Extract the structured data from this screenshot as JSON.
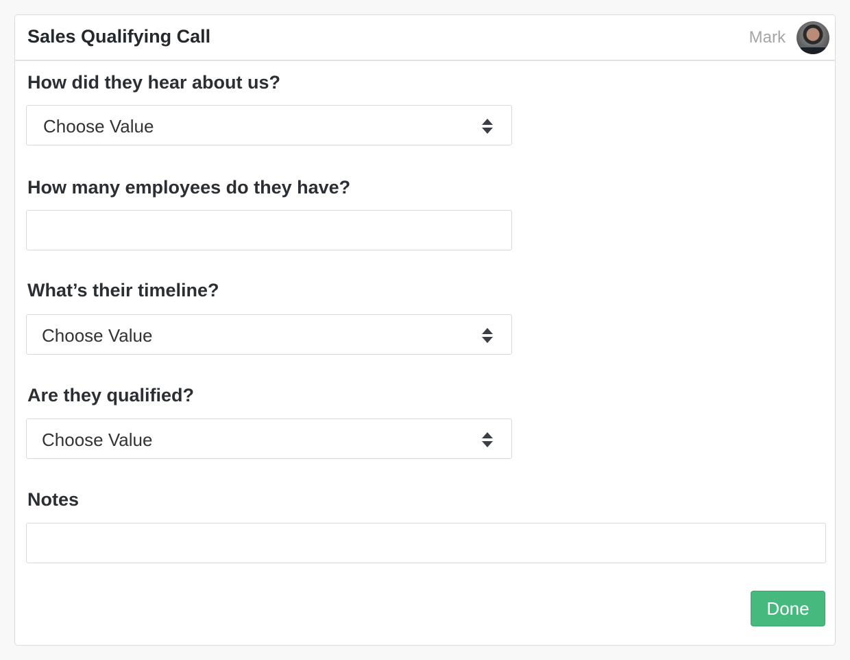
{
  "header": {
    "title": "Sales Qualifying Call",
    "user_name": "Mark"
  },
  "form": {
    "q1": {
      "label": "How did they hear about us?",
      "value": "Choose Value"
    },
    "q2": {
      "label": "How many employees do they have?",
      "value": ""
    },
    "q3": {
      "label": "What’s their timeline?",
      "value": "Choose Value"
    },
    "q4": {
      "label": "Are they qualified?",
      "value": "Choose Value"
    },
    "notes": {
      "label": "Notes",
      "value": ""
    }
  },
  "actions": {
    "done_label": "Done"
  },
  "colors": {
    "accent": "#46ba7e"
  }
}
